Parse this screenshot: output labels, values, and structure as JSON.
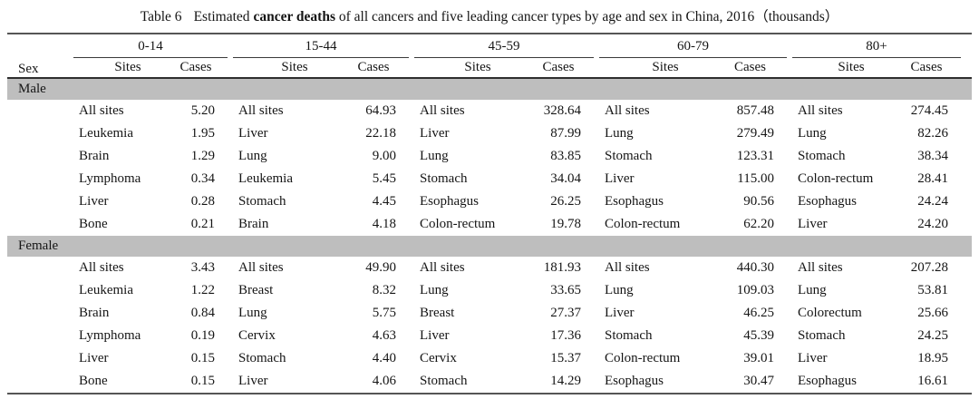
{
  "title": {
    "label": "Table 6",
    "pre_bold": "Estimated ",
    "bold": "cancer deaths",
    "post_bold": " of all cancers and five leading cancer types by age and sex in China, 2016（thousands）"
  },
  "header": {
    "sex_label": "Sex",
    "sites_label": "Sites",
    "cases_label": "Cases",
    "age_groups": [
      "0-14",
      "15-44",
      "45-59",
      "60-79",
      "80+"
    ]
  },
  "sections": [
    {
      "label": "Male",
      "rows": [
        {
          "cells": [
            {
              "site": "All sites",
              "cases": "5.20"
            },
            {
              "site": "All sites",
              "cases": "64.93"
            },
            {
              "site": "All sites",
              "cases": "328.64"
            },
            {
              "site": "All sites",
              "cases": "857.48"
            },
            {
              "site": "All sites",
              "cases": "274.45"
            }
          ]
        },
        {
          "cells": [
            {
              "site": "Leukemia",
              "cases": "1.95"
            },
            {
              "site": "Liver",
              "cases": "22.18"
            },
            {
              "site": "Liver",
              "cases": "87.99"
            },
            {
              "site": "Lung",
              "cases": "279.49"
            },
            {
              "site": "Lung",
              "cases": "82.26"
            }
          ]
        },
        {
          "cells": [
            {
              "site": "Brain",
              "cases": "1.29"
            },
            {
              "site": "Lung",
              "cases": "9.00"
            },
            {
              "site": "Lung",
              "cases": "83.85"
            },
            {
              "site": "Stomach",
              "cases": "123.31"
            },
            {
              "site": "Stomach",
              "cases": "38.34"
            }
          ]
        },
        {
          "cells": [
            {
              "site": "Lymphoma",
              "cases": "0.34"
            },
            {
              "site": "Leukemia",
              "cases": "5.45"
            },
            {
              "site": "Stomach",
              "cases": "34.04"
            },
            {
              "site": "Liver",
              "cases": "115.00"
            },
            {
              "site": "Colon-rectum",
              "cases": "28.41"
            }
          ]
        },
        {
          "cells": [
            {
              "site": "Liver",
              "cases": "0.28"
            },
            {
              "site": "Stomach",
              "cases": "4.45"
            },
            {
              "site": "Esophagus",
              "cases": "26.25"
            },
            {
              "site": "Esophagus",
              "cases": "90.56"
            },
            {
              "site": "Esophagus",
              "cases": "24.24"
            }
          ]
        },
        {
          "cells": [
            {
              "site": "Bone",
              "cases": "0.21"
            },
            {
              "site": "Brain",
              "cases": "4.18"
            },
            {
              "site": "Colon-rectum",
              "cases": "19.78"
            },
            {
              "site": "Colon-rectum",
              "cases": "62.20"
            },
            {
              "site": "Liver",
              "cases": "24.20"
            }
          ]
        }
      ]
    },
    {
      "label": "Female",
      "rows": [
        {
          "cells": [
            {
              "site": "All sites",
              "cases": "3.43"
            },
            {
              "site": "All sites",
              "cases": "49.90"
            },
            {
              "site": "All sites",
              "cases": "181.93"
            },
            {
              "site": "All sites",
              "cases": "440.30"
            },
            {
              "site": "All sites",
              "cases": "207.28"
            }
          ]
        },
        {
          "cells": [
            {
              "site": "Leukemia",
              "cases": "1.22"
            },
            {
              "site": "Breast",
              "cases": "8.32"
            },
            {
              "site": "Lung",
              "cases": "33.65"
            },
            {
              "site": "Lung",
              "cases": "109.03"
            },
            {
              "site": "Lung",
              "cases": "53.81"
            }
          ]
        },
        {
          "cells": [
            {
              "site": "Brain",
              "cases": "0.84"
            },
            {
              "site": "Lung",
              "cases": "5.75"
            },
            {
              "site": "Breast",
              "cases": "27.37"
            },
            {
              "site": "Liver",
              "cases": "46.25"
            },
            {
              "site": "Colorectum",
              "cases": "25.66"
            }
          ]
        },
        {
          "cells": [
            {
              "site": "Lymphoma",
              "cases": "0.19"
            },
            {
              "site": "Cervix",
              "cases": "4.63"
            },
            {
              "site": "Liver",
              "cases": "17.36"
            },
            {
              "site": "Stomach",
              "cases": "45.39"
            },
            {
              "site": "Stomach",
              "cases": "24.25"
            }
          ]
        },
        {
          "cells": [
            {
              "site": "Liver",
              "cases": "0.15"
            },
            {
              "site": "Stomach",
              "cases": "4.40"
            },
            {
              "site": "Cervix",
              "cases": "15.37"
            },
            {
              "site": "Colon-rectum",
              "cases": "39.01"
            },
            {
              "site": "Liver",
              "cases": "18.95"
            }
          ]
        },
        {
          "cells": [
            {
              "site": "Bone",
              "cases": "0.15"
            },
            {
              "site": "Liver",
              "cases": "4.06"
            },
            {
              "site": "Stomach",
              "cases": "14.29"
            },
            {
              "site": "Esophagus",
              "cases": "30.47"
            },
            {
              "site": "Esophagus",
              "cases": "16.61"
            }
          ]
        }
      ]
    }
  ],
  "colors": {
    "band_gray": "#bebebe",
    "rule_dark": "#555555",
    "text": "#151515"
  }
}
